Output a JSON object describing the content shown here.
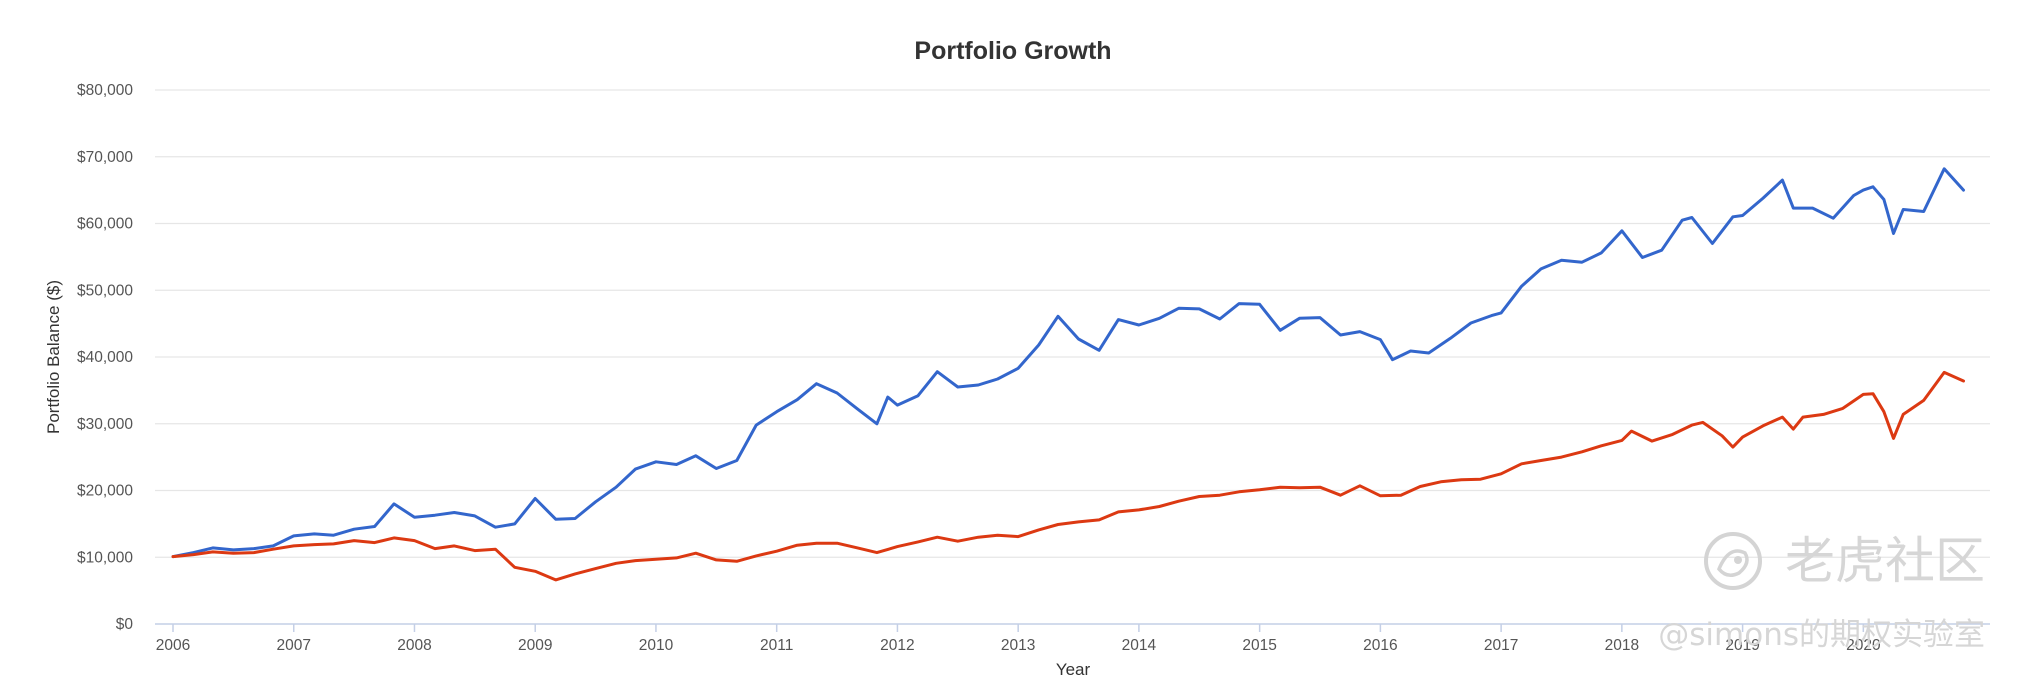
{
  "chart_data": {
    "type": "line",
    "title": "Portfolio Growth",
    "xlabel": "Year",
    "ylabel": "Portfolio Balance ($)",
    "x_range": [
      2006,
      2020.9
    ],
    "ylim": [
      0,
      80000
    ],
    "y_ticks": [
      0,
      10000,
      20000,
      30000,
      40000,
      50000,
      60000,
      70000,
      80000
    ],
    "y_tick_labels": [
      "$0",
      "$10,000",
      "$20,000",
      "$30,000",
      "$40,000",
      "$50,000",
      "$60,000",
      "$70,000",
      "$80,000"
    ],
    "x_ticks": [
      2006,
      2007,
      2008,
      2009,
      2010,
      2011,
      2012,
      2013,
      2014,
      2015,
      2016,
      2017,
      2018,
      2019,
      2020
    ],
    "x_tick_labels": [
      "2006",
      "2007",
      "2008",
      "2009",
      "2010",
      "2011",
      "2012",
      "2013",
      "2014",
      "2015",
      "2016",
      "2017",
      "2018",
      "2019",
      "2020"
    ],
    "grid": true,
    "legend": false,
    "series": [
      {
        "color": "#3366cc",
        "points": [
          [
            2006.0,
            10100
          ],
          [
            2006.17,
            10700
          ],
          [
            2006.33,
            11400
          ],
          [
            2006.5,
            11100
          ],
          [
            2006.67,
            11300
          ],
          [
            2006.83,
            11700
          ],
          [
            2007.0,
            13200
          ],
          [
            2007.17,
            13500
          ],
          [
            2007.33,
            13300
          ],
          [
            2007.5,
            14200
          ],
          [
            2007.67,
            14600
          ],
          [
            2007.83,
            18000
          ],
          [
            2008.0,
            16000
          ],
          [
            2008.17,
            16300
          ],
          [
            2008.33,
            16700
          ],
          [
            2008.5,
            16200
          ],
          [
            2008.67,
            14500
          ],
          [
            2008.83,
            15000
          ],
          [
            2009.0,
            18800
          ],
          [
            2009.17,
            15700
          ],
          [
            2009.33,
            15800
          ],
          [
            2009.5,
            18300
          ],
          [
            2009.67,
            20500
          ],
          [
            2009.83,
            23200
          ],
          [
            2010.0,
            24300
          ],
          [
            2010.17,
            23900
          ],
          [
            2010.33,
            25200
          ],
          [
            2010.5,
            23300
          ],
          [
            2010.67,
            24500
          ],
          [
            2010.83,
            29800
          ],
          [
            2011.0,
            31800
          ],
          [
            2011.17,
            33600
          ],
          [
            2011.33,
            36000
          ],
          [
            2011.5,
            34600
          ],
          [
            2011.67,
            32200
          ],
          [
            2011.83,
            30000
          ],
          [
            2011.92,
            34000
          ],
          [
            2012.0,
            32800
          ],
          [
            2012.17,
            34200
          ],
          [
            2012.33,
            37800
          ],
          [
            2012.5,
            35500
          ],
          [
            2012.67,
            35800
          ],
          [
            2012.83,
            36700
          ],
          [
            2013.0,
            38300
          ],
          [
            2013.17,
            41800
          ],
          [
            2013.33,
            46100
          ],
          [
            2013.5,
            42700
          ],
          [
            2013.67,
            41000
          ],
          [
            2013.83,
            45600
          ],
          [
            2014.0,
            44800
          ],
          [
            2014.17,
            45800
          ],
          [
            2014.33,
            47300
          ],
          [
            2014.5,
            47200
          ],
          [
            2014.67,
            45700
          ],
          [
            2014.83,
            48000
          ],
          [
            2015.0,
            47900
          ],
          [
            2015.17,
            44000
          ],
          [
            2015.33,
            45800
          ],
          [
            2015.5,
            45900
          ],
          [
            2015.67,
            43300
          ],
          [
            2015.83,
            43800
          ],
          [
            2016.0,
            42600
          ],
          [
            2016.1,
            39600
          ],
          [
            2016.25,
            40900
          ],
          [
            2016.4,
            40600
          ],
          [
            2016.58,
            42800
          ],
          [
            2016.75,
            45100
          ],
          [
            2016.92,
            46200
          ],
          [
            2017.0,
            46600
          ],
          [
            2017.17,
            50600
          ],
          [
            2017.33,
            53200
          ],
          [
            2017.5,
            54500
          ],
          [
            2017.67,
            54200
          ],
          [
            2017.83,
            55600
          ],
          [
            2018.0,
            58900
          ],
          [
            2018.17,
            54900
          ],
          [
            2018.33,
            56000
          ],
          [
            2018.5,
            60500
          ],
          [
            2018.58,
            60900
          ],
          [
            2018.75,
            57000
          ],
          [
            2018.92,
            61000
          ],
          [
            2019.0,
            61200
          ],
          [
            2019.17,
            63800
          ],
          [
            2019.33,
            66500
          ],
          [
            2019.42,
            62300
          ],
          [
            2019.58,
            62300
          ],
          [
            2019.75,
            60800
          ],
          [
            2019.92,
            64200
          ],
          [
            2020.0,
            65000
          ],
          [
            2020.08,
            65500
          ],
          [
            2020.17,
            63600
          ],
          [
            2020.25,
            58500
          ],
          [
            2020.33,
            62100
          ],
          [
            2020.5,
            61800
          ],
          [
            2020.67,
            68200
          ],
          [
            2020.83,
            65000
          ]
        ]
      },
      {
        "color": "#dc3912",
        "points": [
          [
            2006.0,
            10100
          ],
          [
            2006.17,
            10400
          ],
          [
            2006.33,
            10800
          ],
          [
            2006.5,
            10600
          ],
          [
            2006.67,
            10700
          ],
          [
            2006.83,
            11200
          ],
          [
            2007.0,
            11700
          ],
          [
            2007.17,
            11900
          ],
          [
            2007.33,
            12000
          ],
          [
            2007.5,
            12500
          ],
          [
            2007.67,
            12200
          ],
          [
            2007.83,
            12900
          ],
          [
            2008.0,
            12500
          ],
          [
            2008.17,
            11300
          ],
          [
            2008.33,
            11700
          ],
          [
            2008.5,
            11000
          ],
          [
            2008.67,
            11200
          ],
          [
            2008.83,
            8500
          ],
          [
            2009.0,
            7900
          ],
          [
            2009.17,
            6600
          ],
          [
            2009.33,
            7500
          ],
          [
            2009.5,
            8300
          ],
          [
            2009.67,
            9100
          ],
          [
            2009.83,
            9500
          ],
          [
            2010.0,
            9700
          ],
          [
            2010.17,
            9900
          ],
          [
            2010.33,
            10600
          ],
          [
            2010.5,
            9600
          ],
          [
            2010.67,
            9400
          ],
          [
            2010.83,
            10200
          ],
          [
            2011.0,
            10900
          ],
          [
            2011.17,
            11800
          ],
          [
            2011.33,
            12100
          ],
          [
            2011.5,
            12100
          ],
          [
            2011.67,
            11400
          ],
          [
            2011.83,
            10700
          ],
          [
            2012.0,
            11600
          ],
          [
            2012.17,
            12300
          ],
          [
            2012.33,
            13000
          ],
          [
            2012.5,
            12400
          ],
          [
            2012.67,
            13000
          ],
          [
            2012.83,
            13300
          ],
          [
            2013.0,
            13100
          ],
          [
            2013.17,
            14100
          ],
          [
            2013.33,
            14900
          ],
          [
            2013.5,
            15300
          ],
          [
            2013.67,
            15600
          ],
          [
            2013.83,
            16800
          ],
          [
            2014.0,
            17100
          ],
          [
            2014.17,
            17600
          ],
          [
            2014.33,
            18400
          ],
          [
            2014.5,
            19100
          ],
          [
            2014.67,
            19300
          ],
          [
            2014.83,
            19800
          ],
          [
            2015.0,
            20100
          ],
          [
            2015.17,
            20500
          ],
          [
            2015.33,
            20400
          ],
          [
            2015.5,
            20500
          ],
          [
            2015.67,
            19300
          ],
          [
            2015.83,
            20700
          ],
          [
            2016.0,
            19200
          ],
          [
            2016.17,
            19300
          ],
          [
            2016.33,
            20600
          ],
          [
            2016.5,
            21300
          ],
          [
            2016.67,
            21600
          ],
          [
            2016.83,
            21700
          ],
          [
            2017.0,
            22500
          ],
          [
            2017.17,
            24000
          ],
          [
            2017.33,
            24500
          ],
          [
            2017.5,
            25000
          ],
          [
            2017.67,
            25800
          ],
          [
            2017.83,
            26700
          ],
          [
            2018.0,
            27500
          ],
          [
            2018.08,
            28900
          ],
          [
            2018.25,
            27400
          ],
          [
            2018.42,
            28400
          ],
          [
            2018.58,
            29800
          ],
          [
            2018.67,
            30200
          ],
          [
            2018.83,
            28200
          ],
          [
            2018.92,
            26500
          ],
          [
            2019.0,
            28000
          ],
          [
            2019.17,
            29700
          ],
          [
            2019.33,
            31000
          ],
          [
            2019.42,
            29200
          ],
          [
            2019.5,
            31000
          ],
          [
            2019.67,
            31400
          ],
          [
            2019.83,
            32300
          ],
          [
            2020.0,
            34400
          ],
          [
            2020.08,
            34500
          ],
          [
            2020.17,
            31800
          ],
          [
            2020.25,
            27800
          ],
          [
            2020.33,
            31400
          ],
          [
            2020.5,
            33500
          ],
          [
            2020.67,
            37700
          ],
          [
            2020.83,
            36400
          ]
        ]
      }
    ]
  },
  "watermark": {
    "brand_text": "老虎社区",
    "handle_text": "@simons的期权实验室",
    "logo_icon": "tiger-community-logo-icon"
  }
}
